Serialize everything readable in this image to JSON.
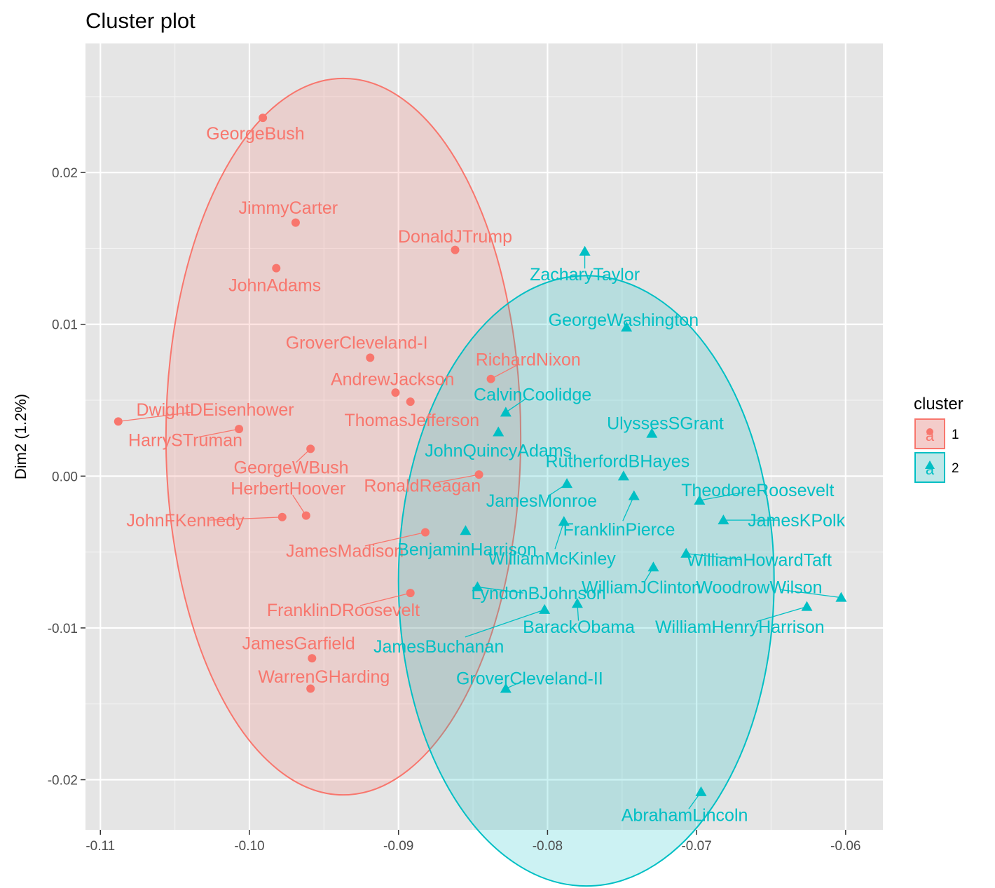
{
  "chart_data": {
    "type": "scatter",
    "title": "Cluster plot",
    "xlabel": "",
    "ylabel": "Dim2 (1.2%)",
    "xlim": [
      -0.111,
      -0.0575
    ],
    "ylim": [
      -0.0233,
      0.0285
    ],
    "x_ticks": [
      -0.11,
      -0.1,
      -0.09,
      -0.08,
      -0.07,
      -0.06
    ],
    "x_tick_labels": [
      "-0.11",
      "-0.10",
      "-0.09",
      "-0.08",
      "-0.07",
      "-0.06"
    ],
    "y_ticks": [
      -0.02,
      -0.01,
      0.0,
      0.01,
      0.02
    ],
    "y_tick_labels": [
      "-0.02",
      "-0.01",
      "0.00",
      "0.01",
      "0.02"
    ],
    "grid": true,
    "legend": {
      "title": "cluster",
      "position": "right",
      "glyph_text": "a",
      "entries": [
        {
          "label": "1",
          "color": "#F8766D",
          "fill": "#F4CCCA",
          "shape": "circle"
        },
        {
          "label": "2",
          "color": "#00BFC4",
          "fill": "#BFE7E8",
          "shape": "triangle"
        }
      ]
    },
    "clusters": [
      {
        "name": "1",
        "color": "#F8766D",
        "shape": "circle",
        "ellipse": {
          "cx": -0.0937,
          "cy": 0.0026,
          "rx": 0.0119,
          "ry": 0.0236
        },
        "points": [
          {
            "label": "GeorgeBush",
            "x": -0.0991,
            "y": 0.0236,
            "lx": -0.0996,
            "ly": 0.0226
          },
          {
            "label": "JimmyCarter",
            "x": -0.0969,
            "y": 0.0167,
            "lx": -0.0974,
            "ly": 0.0177
          },
          {
            "label": "DonaldJTrump",
            "x": -0.0862,
            "y": 0.0149,
            "lx": -0.0862,
            "ly": 0.0158
          },
          {
            "label": "JohnAdams",
            "x": -0.0982,
            "y": 0.0137,
            "lx": -0.0983,
            "ly": 0.0126
          },
          {
            "label": "GroverCleveland-I",
            "x": -0.0919,
            "y": 0.0078,
            "lx": -0.0928,
            "ly": 0.0088
          },
          {
            "label": "RichardNixon",
            "x": -0.0838,
            "y": 0.0064,
            "lx": -0.0813,
            "ly": 0.0077
          },
          {
            "label": "AndrewJackson",
            "x": -0.0902,
            "y": 0.0055,
            "lx": -0.0904,
            "ly": 0.0064
          },
          {
            "label": "ThomasJefferson",
            "x": -0.0892,
            "y": 0.0049,
            "lx": -0.0891,
            "ly": 0.0037
          },
          {
            "label": "DwightDEisenhower",
            "x": -0.1088,
            "y": 0.0036,
            "lx": -0.1023,
            "ly": 0.0044
          },
          {
            "label": "HarrySTruman",
            "x": -0.1007,
            "y": 0.0031,
            "lx": -0.1043,
            "ly": 0.0024
          },
          {
            "label": "GeorgeWBush",
            "x": -0.0959,
            "y": 0.0018,
            "lx": -0.0972,
            "ly": 0.0006
          },
          {
            "label": "RonaldReagan",
            "x": -0.0846,
            "y": 0.0001,
            "lx": -0.0884,
            "ly": -0.0006
          },
          {
            "label": "HerbertHoover",
            "x": -0.0962,
            "y": -0.0026,
            "lx": -0.0974,
            "ly": -0.0008
          },
          {
            "label": "JohnFKennedy",
            "x": -0.0978,
            "y": -0.0027,
            "lx": -0.1043,
            "ly": -0.0029
          },
          {
            "label": "JamesMadison",
            "x": -0.0882,
            "y": -0.0037,
            "lx": -0.0936,
            "ly": -0.0049
          },
          {
            "label": "FranklinDRoosevelt",
            "x": -0.0892,
            "y": -0.0077,
            "lx": -0.0937,
            "ly": -0.0088
          },
          {
            "label": "JamesGarfield",
            "x": -0.0958,
            "y": -0.012,
            "lx": -0.0967,
            "ly": -0.011
          },
          {
            "label": "WarrenGHarding",
            "x": -0.0959,
            "y": -0.014,
            "lx": -0.095,
            "ly": -0.0132
          }
        ]
      },
      {
        "name": "2",
        "color": "#00BFC4",
        "shape": "triangle",
        "ellipse": {
          "cx": -0.0774,
          "cy": -0.0069,
          "rx": 0.0126,
          "ry": 0.0201
        },
        "points": [
          {
            "label": "ZacharyTaylor",
            "x": -0.0775,
            "y": 0.0148,
            "lx": -0.0775,
            "ly": 0.0133
          },
          {
            "label": "GeorgeWashington",
            "x": -0.0747,
            "y": 0.0098,
            "lx": -0.0749,
            "ly": 0.0103
          },
          {
            "label": "CalvinCoolidge",
            "x": -0.0828,
            "y": 0.0042,
            "lx": -0.081,
            "ly": 0.0054
          },
          {
            "label": "UlyssesSGrant",
            "x": -0.073,
            "y": 0.0028,
            "lx": -0.0721,
            "ly": 0.0035
          },
          {
            "label": "JohnQuincyAdams",
            "x": -0.0833,
            "y": 0.0029,
            "lx": -0.0833,
            "ly": 0.0017
          },
          {
            "label": "RutherfordBHayes",
            "x": -0.0749,
            "y": 0.0,
            "lx": -0.0753,
            "ly": 0.001
          },
          {
            "label": "JamesMonroe",
            "x": -0.0787,
            "y": -0.0005,
            "lx": -0.0804,
            "ly": -0.0016
          },
          {
            "label": "TheodoreRoosevelt",
            "x": -0.0698,
            "y": -0.0016,
            "lx": -0.0659,
            "ly": -0.0009
          },
          {
            "label": "FranklinPierce",
            "x": -0.0742,
            "y": -0.0013,
            "lx": -0.0752,
            "ly": -0.0035
          },
          {
            "label": "JamesKPolk",
            "x": -0.0682,
            "y": -0.0029,
            "lx": -0.0633,
            "ly": -0.0029
          },
          {
            "label": "BenjaminHarrison",
            "x": -0.0855,
            "y": -0.0036,
            "lx": -0.0854,
            "ly": -0.0048
          },
          {
            "label": "WilliamMcKinley",
            "x": -0.0789,
            "y": -0.003,
            "lx": -0.0797,
            "ly": -0.0054
          },
          {
            "label": "WilliamHowardTaft",
            "x": -0.0707,
            "y": -0.0051,
            "lx": -0.0658,
            "ly": -0.0055
          },
          {
            "label": "WilliamJClinton",
            "x": -0.0729,
            "y": -0.006,
            "lx": -0.0737,
            "ly": -0.0073
          },
          {
            "label": "WoodrowWilson",
            "x": -0.0603,
            "y": -0.008,
            "lx": -0.0658,
            "ly": -0.0073
          },
          {
            "label": "LyndonBJohnson",
            "x": -0.0847,
            "y": -0.0073,
            "lx": -0.0806,
            "ly": -0.0077
          },
          {
            "label": "WilliamHenryHarrison",
            "x": -0.0626,
            "y": -0.0086,
            "lx": -0.0671,
            "ly": -0.0099
          },
          {
            "label": "BarackObama",
            "x": -0.078,
            "y": -0.0084,
            "lx": -0.0779,
            "ly": -0.0099
          },
          {
            "label": "JamesBuchanan",
            "x": -0.0802,
            "y": -0.0088,
            "lx": -0.0873,
            "ly": -0.0112
          },
          {
            "label": "GroverCleveland-II",
            "x": -0.0828,
            "y": -0.014,
            "lx": -0.0812,
            "ly": -0.0133
          },
          {
            "label": "AbrahamLincoln",
            "x": -0.0697,
            "y": -0.0208,
            "lx": -0.0708,
            "ly": -0.0223
          }
        ]
      }
    ]
  }
}
